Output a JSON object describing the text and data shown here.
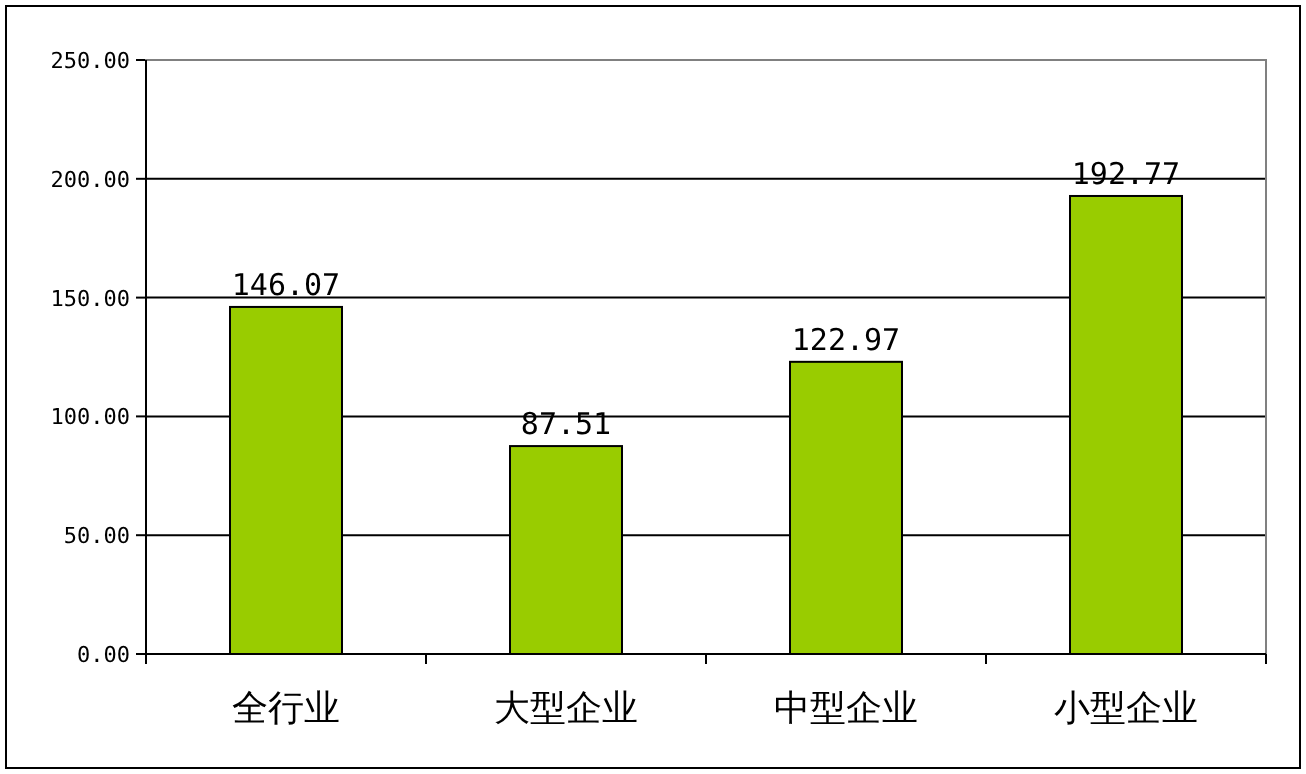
{
  "chart_data": {
    "type": "bar",
    "categories": [
      "全行业",
      "大型企业",
      "中型企业",
      "小型企业"
    ],
    "values": [
      146.07,
      87.51,
      122.97,
      192.77
    ],
    "color": "#99cc00",
    "ylim": [
      0,
      250
    ],
    "yticks": [
      {
        "value": 0,
        "label": "0.00"
      },
      {
        "value": 50,
        "label": "50.00"
      },
      {
        "value": 100,
        "label": "100.00"
      },
      {
        "value": 150,
        "label": "150.00"
      },
      {
        "value": 200,
        "label": "200.00"
      },
      {
        "value": 250,
        "label": "250.00"
      }
    ],
    "grid": "y",
    "data_labels": true
  }
}
